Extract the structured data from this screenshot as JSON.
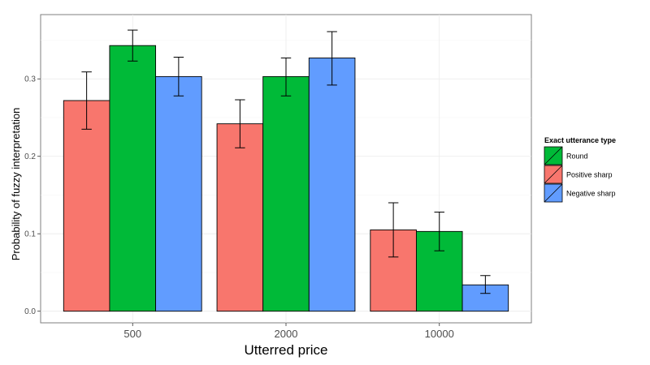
{
  "chart_data": {
    "type": "bar",
    "xlabel": "Utterred price",
    "ylabel": "Probability of fuzzy interpretation",
    "categories": [
      "500",
      "2000",
      "10000"
    ],
    "ylim": [
      -0.015,
      0.383
    ],
    "yticks": [
      0.0,
      0.1,
      0.2,
      0.3
    ],
    "ytick_labels": [
      "0.0",
      "0.1",
      "0.2",
      "0.3"
    ],
    "grid": true,
    "legend": {
      "title": "Exact utterance type",
      "placement": "right",
      "entries": [
        "Round",
        "Positive sharp",
        "Negative sharp"
      ]
    },
    "series": [
      {
        "name": "Positive sharp",
        "color": "#F8766D",
        "values": [
          0.272,
          0.242,
          0.105
        ],
        "lower": [
          0.235,
          0.211,
          0.07
        ],
        "upper": [
          0.309,
          0.273,
          0.14
        ]
      },
      {
        "name": "Round",
        "color": "#00BA38",
        "values": [
          0.343,
          0.303,
          0.103
        ],
        "lower": [
          0.323,
          0.278,
          0.078
        ],
        "upper": [
          0.363,
          0.327,
          0.128
        ]
      },
      {
        "name": "Negative sharp",
        "color": "#619CFF",
        "values": [
          0.303,
          0.327,
          0.034
        ],
        "lower": [
          0.278,
          0.292,
          0.023
        ],
        "upper": [
          0.328,
          0.361,
          0.046
        ]
      }
    ]
  }
}
